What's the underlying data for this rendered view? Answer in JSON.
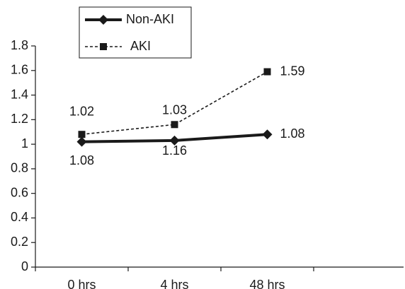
{
  "chart_data": {
    "type": "line",
    "categories": [
      "0 hrs",
      "4 hrs",
      "48 hrs"
    ],
    "series": [
      {
        "name": "Non-AKI",
        "color": "#1a1a1a",
        "values": [
          1.02,
          1.03,
          1.08
        ]
      },
      {
        "name": "AKI",
        "color": "#1a1a1a",
        "values": [
          1.08,
          1.16,
          1.59
        ]
      }
    ],
    "ylim": [
      0,
      1.8
    ],
    "yticks": [
      0,
      0.2,
      0.4,
      0.6,
      0.8,
      1,
      1.2,
      1.4,
      1.6,
      1.8
    ],
    "grid": false,
    "legend": "top"
  }
}
